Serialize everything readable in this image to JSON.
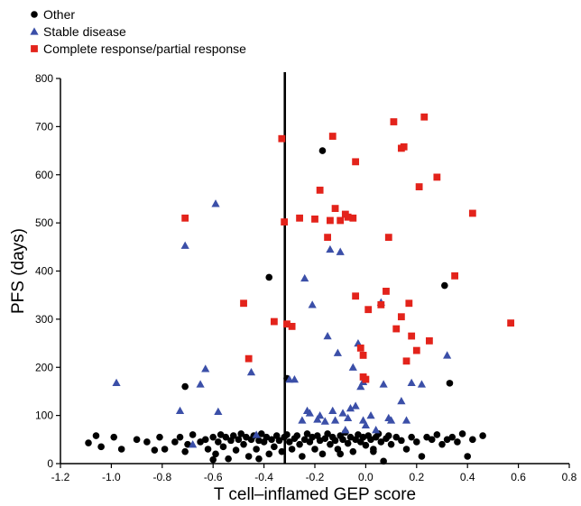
{
  "chart_data": {
    "type": "scatter",
    "title": "",
    "xlabel": "T cell–inflamed GEP score",
    "ylabel": "PFS (days)",
    "xlim": [
      -1.2,
      0.8
    ],
    "ylim": [
      0,
      800
    ],
    "xticks": [
      "-1.2",
      "-1.0",
      "-0.8",
      "-0.6",
      "-0.4",
      "-0.2",
      "0.0",
      "0.2",
      "0.4",
      "0.6",
      "0.8"
    ],
    "yticks": [
      "0",
      "100",
      "200",
      "300",
      "400",
      "500",
      "600",
      "700",
      "800"
    ],
    "grid": false,
    "legend_position": "top-left",
    "threshold_line": {
      "x": -0.318
    },
    "series": [
      {
        "name": "Other",
        "marker": "circle",
        "color": "#000000",
        "points": [
          [
            -1.09,
            43
          ],
          [
            -1.06,
            58
          ],
          [
            -1.04,
            35
          ],
          [
            -0.99,
            55
          ],
          [
            -0.96,
            30
          ],
          [
            -0.9,
            50
          ],
          [
            -0.86,
            45
          ],
          [
            -0.83,
            28
          ],
          [
            -0.81,
            55
          ],
          [
            -0.79,
            30
          ],
          [
            -0.75,
            45
          ],
          [
            -0.73,
            55
          ],
          [
            -0.71,
            25
          ],
          [
            -0.7,
            40
          ],
          [
            -0.68,
            60
          ],
          [
            -0.65,
            45
          ],
          [
            -0.63,
            50
          ],
          [
            -0.62,
            30
          ],
          [
            -0.6,
            55
          ],
          [
            -0.59,
            20
          ],
          [
            -0.58,
            45
          ],
          [
            -0.57,
            60
          ],
          [
            -0.56,
            35
          ],
          [
            -0.55,
            55
          ],
          [
            -0.54,
            10
          ],
          [
            -0.53,
            48
          ],
          [
            -0.52,
            58
          ],
          [
            -0.51,
            28
          ],
          [
            -0.5,
            50
          ],
          [
            -0.49,
            62
          ],
          [
            -0.48,
            40
          ],
          [
            -0.47,
            55
          ],
          [
            -0.46,
            15
          ],
          [
            -0.45,
            50
          ],
          [
            -0.44,
            58
          ],
          [
            -0.43,
            30
          ],
          [
            -0.42,
            48
          ],
          [
            -0.41,
            62
          ],
          [
            -0.4,
            45
          ],
          [
            -0.39,
            55
          ],
          [
            -0.38,
            20
          ],
          [
            -0.37,
            50
          ],
          [
            -0.36,
            35
          ],
          [
            -0.35,
            58
          ],
          [
            -0.34,
            48
          ],
          [
            -0.33,
            25
          ],
          [
            -0.32,
            55
          ],
          [
            -0.31,
            60
          ],
          [
            -0.3,
            45
          ],
          [
            -0.29,
            30
          ],
          [
            -0.28,
            52
          ],
          [
            -0.27,
            58
          ],
          [
            -0.26,
            40
          ],
          [
            -0.25,
            15
          ],
          [
            -0.24,
            50
          ],
          [
            -0.23,
            62
          ],
          [
            -0.22,
            45
          ],
          [
            -0.21,
            55
          ],
          [
            -0.2,
            30
          ],
          [
            -0.19,
            58
          ],
          [
            -0.18,
            48
          ],
          [
            -0.17,
            20
          ],
          [
            -0.16,
            52
          ],
          [
            -0.15,
            62
          ],
          [
            -0.14,
            40
          ],
          [
            -0.13,
            55
          ],
          [
            -0.12,
            48
          ],
          [
            -0.11,
            30
          ],
          [
            -0.1,
            58
          ],
          [
            -0.09,
            50
          ],
          [
            -0.08,
            65
          ],
          [
            -0.07,
            42
          ],
          [
            -0.06,
            55
          ],
          [
            -0.05,
            25
          ],
          [
            -0.04,
            50
          ],
          [
            -0.03,
            60
          ],
          [
            -0.02,
            45
          ],
          [
            -0.01,
            55
          ],
          [
            0.0,
            38
          ],
          [
            0.01,
            58
          ],
          [
            0.02,
            50
          ],
          [
            0.03,
            30
          ],
          [
            0.04,
            55
          ],
          [
            0.05,
            62
          ],
          [
            0.06,
            45
          ],
          [
            0.07,
            5
          ],
          [
            0.08,
            52
          ],
          [
            0.09,
            58
          ],
          [
            0.1,
            40
          ],
          [
            0.12,
            55
          ],
          [
            0.14,
            48
          ],
          [
            0.16,
            30
          ],
          [
            0.18,
            55
          ],
          [
            0.2,
            45
          ],
          [
            0.22,
            15
          ],
          [
            0.24,
            55
          ],
          [
            0.26,
            50
          ],
          [
            0.28,
            60
          ],
          [
            0.3,
            40
          ],
          [
            0.32,
            50
          ],
          [
            0.34,
            55
          ],
          [
            0.36,
            45
          ],
          [
            0.38,
            62
          ],
          [
            0.4,
            15
          ],
          [
            0.42,
            50
          ],
          [
            0.46,
            58
          ],
          [
            -0.42,
            10
          ],
          [
            -0.6,
            8
          ],
          [
            -0.1,
            20
          ],
          [
            0.03,
            25
          ],
          [
            -0.71,
            160
          ],
          [
            -0.38,
            387
          ],
          [
            -0.31,
            177
          ],
          [
            -0.17,
            650
          ],
          [
            0.31,
            370
          ],
          [
            0.33,
            167
          ]
        ]
      },
      {
        "name": "Stable disease",
        "marker": "triangle",
        "color": "#3b4fa8",
        "points": [
          [
            -0.98,
            168
          ],
          [
            -0.73,
            110
          ],
          [
            -0.71,
            453
          ],
          [
            -0.68,
            40
          ],
          [
            -0.65,
            165
          ],
          [
            -0.63,
            197
          ],
          [
            -0.59,
            540
          ],
          [
            -0.58,
            108
          ],
          [
            -0.45,
            190
          ],
          [
            -0.43,
            60
          ],
          [
            -0.3,
            175
          ],
          [
            -0.28,
            175
          ],
          [
            -0.25,
            90
          ],
          [
            -0.24,
            385
          ],
          [
            -0.23,
            110
          ],
          [
            -0.22,
            105
          ],
          [
            -0.21,
            330
          ],
          [
            -0.19,
            92
          ],
          [
            -0.18,
            100
          ],
          [
            -0.16,
            88
          ],
          [
            -0.15,
            265
          ],
          [
            -0.14,
            445
          ],
          [
            -0.13,
            110
          ],
          [
            -0.12,
            90
          ],
          [
            -0.11,
            230
          ],
          [
            -0.1,
            440
          ],
          [
            -0.09,
            105
          ],
          [
            -0.08,
            70
          ],
          [
            -0.07,
            95
          ],
          [
            -0.06,
            115
          ],
          [
            -0.04,
            120
          ],
          [
            -0.03,
            250
          ],
          [
            -0.02,
            160
          ],
          [
            -0.01,
            90
          ],
          [
            0.0,
            80
          ],
          [
            0.02,
            100
          ],
          [
            0.04,
            70
          ],
          [
            0.06,
            335
          ],
          [
            0.07,
            165
          ],
          [
            0.09,
            95
          ],
          [
            0.1,
            90
          ],
          [
            0.14,
            130
          ],
          [
            0.16,
            90
          ],
          [
            0.18,
            168
          ],
          [
            0.22,
            165
          ],
          [
            0.32,
            225
          ],
          [
            -0.05,
            200
          ],
          [
            -0.01,
            170
          ]
        ]
      },
      {
        "name": "Complete response/partial response",
        "marker": "square",
        "color": "#e3231b",
        "points": [
          [
            -0.71,
            510
          ],
          [
            -0.48,
            333
          ],
          [
            -0.46,
            218
          ],
          [
            -0.36,
            295
          ],
          [
            -0.33,
            675
          ],
          [
            -0.32,
            502
          ],
          [
            -0.31,
            290
          ],
          [
            -0.29,
            285
          ],
          [
            -0.26,
            510
          ],
          [
            -0.2,
            508
          ],
          [
            -0.18,
            568
          ],
          [
            -0.15,
            470
          ],
          [
            -0.14,
            505
          ],
          [
            -0.13,
            680
          ],
          [
            -0.12,
            530
          ],
          [
            -0.1,
            505
          ],
          [
            -0.08,
            518
          ],
          [
            -0.07,
            512
          ],
          [
            -0.05,
            510
          ],
          [
            -0.04,
            627
          ],
          [
            -0.04,
            348
          ],
          [
            -0.01,
            225
          ],
          [
            -0.01,
            180
          ],
          [
            0.0,
            175
          ],
          [
            0.06,
            330
          ],
          [
            0.08,
            358
          ],
          [
            0.09,
            470
          ],
          [
            0.11,
            710
          ],
          [
            0.12,
            280
          ],
          [
            0.14,
            655
          ],
          [
            0.15,
            658
          ],
          [
            0.16,
            213
          ],
          [
            0.17,
            333
          ],
          [
            0.18,
            265
          ],
          [
            0.2,
            235
          ],
          [
            0.21,
            575
          ],
          [
            0.23,
            720
          ],
          [
            0.25,
            255
          ],
          [
            0.28,
            595
          ],
          [
            0.35,
            390
          ],
          [
            0.42,
            520
          ],
          [
            0.57,
            292
          ],
          [
            0.14,
            305
          ],
          [
            -0.02,
            240
          ],
          [
            0.01,
            320
          ]
        ]
      }
    ]
  }
}
